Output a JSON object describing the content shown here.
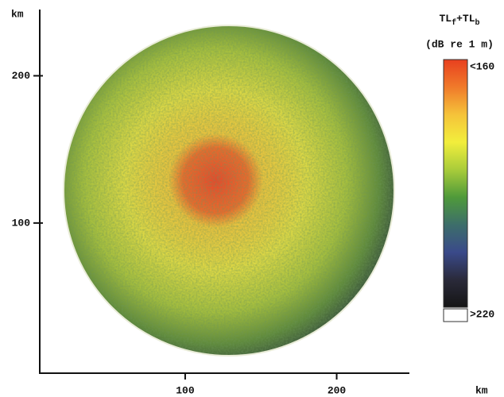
{
  "chart_data": {
    "type": "map",
    "x_label": "km",
    "y_label": "km",
    "xlim": [
      4,
      248
    ],
    "ylim": [
      -2,
      245
    ],
    "xticks": [
      100,
      200
    ],
    "yticks": [
      100,
      200
    ],
    "colorbar": {
      "title_parts": [
        "TL",
        "f",
        "+TL",
        "b"
      ],
      "units": "(dB re 1 m)",
      "top_label": "<160",
      "bottom_label": ">220",
      "colors": [
        "#e8401f",
        "#f07a2a",
        "#f5c33a",
        "#f2ee3c",
        "#a9cc3a",
        "#4f9a3a",
        "#3d6e6a",
        "#3a4a8a",
        "#2a2a3a",
        "#151515"
      ]
    }
  }
}
